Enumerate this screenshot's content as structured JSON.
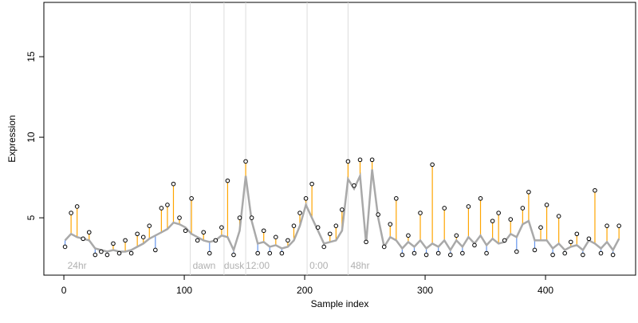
{
  "chart_data": {
    "type": "residual-scatter",
    "xlabel": "Sample index",
    "ylabel": "Expression",
    "x": [
      1,
      6,
      11,
      16,
      21,
      26,
      31,
      36,
      41,
      46,
      51,
      56,
      61,
      66,
      71,
      76,
      81,
      86,
      91,
      96,
      101,
      106,
      111,
      116,
      121,
      126,
      131,
      136,
      141,
      146,
      151,
      156,
      161,
      166,
      171,
      176,
      181,
      186,
      191,
      196,
      201,
      206,
      211,
      216,
      221,
      226,
      231,
      236,
      241,
      246,
      251,
      256,
      261,
      266,
      271,
      276,
      281,
      286,
      291,
      296,
      301,
      306,
      311,
      316,
      321,
      326,
      331,
      336,
      341,
      346,
      351,
      356,
      361,
      366,
      371,
      376,
      381,
      386,
      391,
      396,
      401,
      406,
      411,
      416,
      421,
      426,
      431,
      436,
      441,
      446,
      451,
      456,
      461
    ],
    "values": [
      3.2,
      5.3,
      5.7,
      3.7,
      4.1,
      2.7,
      2.9,
      2.7,
      3.4,
      2.8,
      3.6,
      2.8,
      4.0,
      3.8,
      4.5,
      3.0,
      5.6,
      5.8,
      7.1,
      5.0,
      4.2,
      6.2,
      3.6,
      4.1,
      2.8,
      3.6,
      4.4,
      7.3,
      2.7,
      5.0,
      8.5,
      5.0,
      2.8,
      4.2,
      2.8,
      3.8,
      2.8,
      3.6,
      4.5,
      5.3,
      6.2,
      7.1,
      4.4,
      3.2,
      4.0,
      4.5,
      5.5,
      8.5,
      7.0,
      8.6,
      3.5,
      8.6,
      5.2,
      3.2,
      4.6,
      6.2,
      2.7,
      3.9,
      2.8,
      5.3,
      2.7,
      8.3,
      2.8,
      5.6,
      2.7,
      3.9,
      2.8,
      5.7,
      3.3,
      6.2,
      2.8,
      4.8,
      5.3,
      3.6,
      4.9,
      2.9,
      5.6,
      6.6,
      3.0,
      4.4,
      5.8,
      2.7,
      5.1,
      2.8,
      3.5,
      4.0,
      2.7,
      3.7,
      6.7,
      2.8,
      4.5,
      2.7,
      4.5
    ],
    "smooth_values": [
      3.6,
      4.0,
      3.8,
      3.7,
      3.6,
      3.1,
      3.0,
      2.9,
      3.0,
      2.9,
      2.9,
      3.0,
      3.2,
      3.4,
      3.7,
      3.9,
      4.1,
      4.3,
      4.7,
      4.6,
      4.4,
      4.0,
      3.8,
      3.6,
      3.5,
      3.6,
      3.9,
      3.8,
      3.0,
      4.2,
      7.6,
      4.8,
      3.4,
      3.5,
      3.2,
      3.3,
      3.1,
      3.2,
      3.6,
      4.5,
      5.8,
      5.0,
      4.2,
      3.4,
      3.5,
      3.6,
      4.2,
      7.4,
      6.8,
      7.6,
      3.4,
      8.0,
      5.0,
      3.2,
      3.8,
      3.6,
      3.1,
      3.5,
      3.2,
      3.6,
      3.1,
      3.4,
      3.2,
      3.6,
      3.0,
      3.6,
      3.2,
      3.8,
      3.4,
      3.9,
      3.3,
      3.7,
      3.4,
      3.5,
      4.0,
      3.8,
      4.6,
      4.8,
      3.6,
      3.6,
      3.6,
      3.1,
      3.4,
      3.0,
      3.2,
      3.3,
      3.0,
      3.6,
      3.4,
      3.1,
      3.5,
      3.0,
      3.7
    ],
    "above_color": "#ffa500",
    "below_color": "#6495ed",
    "smooth_color": "#a9a9a9",
    "vlines": [
      105,
      133,
      151,
      202,
      236
    ],
    "period_labels": [
      {
        "x": 3,
        "label": "24hr"
      },
      {
        "x": 107,
        "label": "dawn"
      },
      {
        "x": 133,
        "label": "dusk"
      },
      {
        "x": 151,
        "label": "12:00"
      },
      {
        "x": 204,
        "label": "0:00"
      },
      {
        "x": 238,
        "label": "48hr"
      }
    ],
    "xlim": [
      -16.6,
      474.8
    ],
    "ylim": [
      1.44,
      18.37
    ],
    "xticks": [
      0,
      100,
      200,
      300,
      400
    ],
    "yticks": [
      5,
      10,
      15
    ]
  }
}
